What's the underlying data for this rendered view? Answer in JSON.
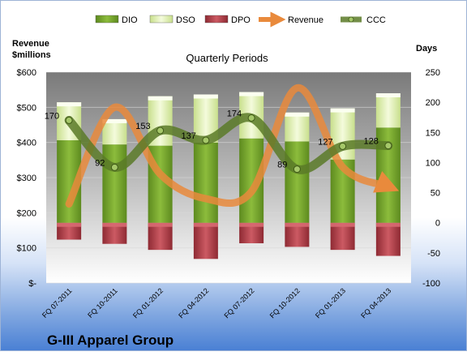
{
  "chart_data": {
    "type": "bar",
    "title": "Quarterly Periods",
    "company": "G-III Apparel Group",
    "left_axis_title": "Revenue\n$millions",
    "right_axis_title": "Days",
    "categories": [
      "FQ 07-2011",
      "FQ 10-2011",
      "FQ 01-2012",
      "FQ 04-2012",
      "FQ 07-2012",
      "FQ 10-2012",
      "FQ 01-2013",
      "FQ 04-2013"
    ],
    "left_axis": {
      "min": 0,
      "max": 600,
      "ticks": [
        "$-",
        "$100",
        "$200",
        "$300",
        "$400",
        "$500",
        "$600"
      ]
    },
    "right_axis": {
      "min": -100,
      "max": 250,
      "ticks": [
        "-100",
        "-50",
        "0",
        "50",
        "100",
        "150",
        "200",
        "250"
      ]
    },
    "legend_position": "top",
    "series": [
      {
        "name": "DIO",
        "axis": "days",
        "kind": "stacked-bar",
        "color": "#6f9a2c",
        "values": [
          137,
          130,
          128,
          133,
          140,
          135,
          105,
          158
        ]
      },
      {
        "name": "DSO",
        "axis": "days",
        "kind": "stacked-bar",
        "color": "#dfeeb3",
        "values": [
          63,
          42,
          82,
          80,
          77,
          48,
          85,
          57
        ]
      },
      {
        "name": "DPO",
        "axis": "days",
        "kind": "bar",
        "color": "#b1414a",
        "values": [
          -28,
          -35,
          -45,
          -60,
          -34,
          -40,
          -45,
          -55
        ]
      },
      {
        "name": "Revenue",
        "axis": "revenue",
        "kind": "line",
        "color": "#e98a3c",
        "values": [
          225,
          500,
          310,
          240,
          260,
          555,
          330,
          275
        ]
      },
      {
        "name": "CCC",
        "axis": "days",
        "kind": "line",
        "color": "#5a7a28",
        "values": [
          170,
          92,
          153,
          137,
          174,
          89,
          127,
          128
        ],
        "labels": [
          "170",
          "92",
          "153",
          "137",
          "174",
          "89",
          "127",
          "128"
        ]
      }
    ]
  }
}
